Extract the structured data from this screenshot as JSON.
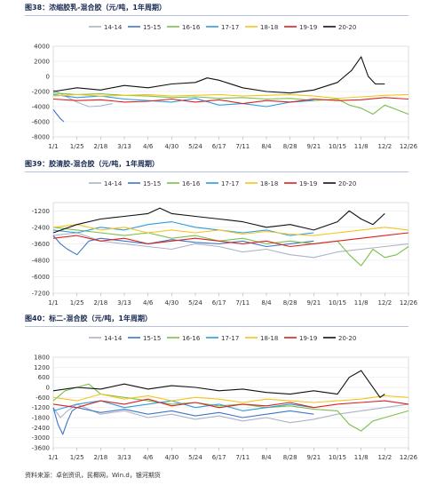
{
  "source": "资料来源：卓创资讯，民椰网，Win.d，银河期货",
  "legend_colors": {
    "14-14": "#aab3c6",
    "15-15": "#3f76c8",
    "16-16": "#7cbf4a",
    "17-17": "#2f9be0",
    "18-18": "#f4c51d",
    "19-19": "#d9231f",
    "20-20": "#111111"
  },
  "chart_data": [
    {
      "type": "line",
      "title": "图38：浓缩胶乳-混合胶（元/吨，1年周期）",
      "x_ticks": [
        "1/1",
        "1/25",
        "2/18",
        "3/13",
        "4/6",
        "4/30",
        "5/24",
        "6/17",
        "7/11",
        "8/4",
        "8/28",
        "9/21",
        "10/15",
        "11/8",
        "12/2",
        "12/26"
      ],
      "y_ticks": [
        "4000",
        "2000",
        "0",
        "-2000",
        "-4000",
        "-6000",
        "-8000"
      ],
      "ylim": [
        -8000,
        4000
      ],
      "series": [
        {
          "name": "14-14",
          "x": [
            0,
            0.5,
            1,
            1.5,
            2,
            2.5
          ],
          "y": [
            -1800,
            -2600,
            -3400,
            -4000,
            -3900,
            -3600
          ]
        },
        {
          "name": "15-15",
          "x": [
            0,
            0.15,
            0.3,
            0.45
          ],
          "y": [
            -4400,
            -5000,
            -5600,
            -6000
          ]
        },
        {
          "name": "16-16",
          "x": [
            0,
            1,
            2,
            3,
            4,
            5,
            6,
            7,
            8,
            9,
            10,
            11,
            12,
            12.5,
            13,
            13.5,
            14,
            14.5,
            15
          ],
          "y": [
            -2200,
            -2400,
            -2300,
            -2500,
            -2600,
            -2800,
            -2700,
            -2900,
            -2800,
            -3000,
            -2900,
            -3200,
            -3000,
            -3800,
            -4200,
            -5000,
            -3800,
            -4400,
            -5000
          ]
        },
        {
          "name": "17-17",
          "x": [
            0,
            1,
            2,
            3,
            4,
            5,
            6,
            7,
            8,
            9,
            10,
            11
          ],
          "y": [
            -2400,
            -2800,
            -2600,
            -3000,
            -3200,
            -3400,
            -2900,
            -3800,
            -3600,
            -4000,
            -3400,
            -3200
          ]
        },
        {
          "name": "18-18",
          "x": [
            0,
            1,
            2,
            3,
            4,
            5,
            6,
            7,
            8,
            9,
            10,
            11,
            12,
            13,
            14,
            15
          ],
          "y": [
            -2600,
            -2400,
            -2600,
            -2500,
            -2400,
            -2600,
            -2500,
            -2400,
            -2600,
            -2500,
            -2400,
            -2600,
            -2900,
            -2700,
            -2500,
            -2400
          ]
        },
        {
          "name": "19-19",
          "x": [
            0,
            1,
            2,
            3,
            4,
            5,
            6,
            7,
            8,
            9,
            10,
            11,
            12,
            13,
            14,
            15
          ],
          "y": [
            -3000,
            -3200,
            -3100,
            -3400,
            -3300,
            -3000,
            -3400,
            -3100,
            -3600,
            -3200,
            -3400,
            -3000,
            -3200,
            -3100,
            -2800,
            -3000
          ]
        },
        {
          "name": "20-20",
          "x": [
            0,
            1,
            2,
            3,
            4,
            5,
            6,
            6.5,
            7,
            8,
            9,
            10,
            11,
            12,
            12.6,
            13,
            13.3,
            13.6,
            14
          ],
          "y": [
            -2000,
            -1500,
            -1800,
            -1200,
            -1500,
            -1000,
            -800,
            -200,
            -500,
            -1500,
            -2000,
            -2200,
            -1800,
            -800,
            800,
            2600,
            0,
            -1000,
            -1000
          ]
        }
      ]
    },
    {
      "type": "line",
      "title": "图39：胶清胶-混合胶（元/吨，1年周期）",
      "x_ticks": [
        "1/1",
        "1/25",
        "2/18",
        "3/13",
        "4/6",
        "4/30",
        "5/24",
        "6/17",
        "7/11",
        "8/4",
        "8/28",
        "9/21",
        "10/15",
        "11/8",
        "12/2",
        "12/26"
      ],
      "y_ticks": [
        "-1200",
        "-2400",
        "-3600",
        "-4800",
        "-6000",
        "-7200"
      ],
      "ylim": [
        -7200,
        -600
      ],
      "series": [
        {
          "name": "14-14",
          "x": [
            0,
            1,
            2,
            3,
            4,
            5,
            6,
            7,
            8,
            9,
            10,
            11,
            12,
            13,
            14,
            15
          ],
          "y": [
            -3000,
            -2800,
            -3400,
            -3600,
            -3800,
            -4000,
            -3600,
            -3800,
            -4200,
            -4000,
            -4400,
            -4600,
            -4200,
            -4000,
            -3800,
            -3600
          ]
        },
        {
          "name": "15-15",
          "x": [
            0,
            0.3,
            0.6,
            1,
            1.5,
            2,
            3,
            4,
            5,
            6,
            7,
            8,
            9,
            10,
            11
          ],
          "y": [
            -3000,
            -3600,
            -4000,
            -4400,
            -3400,
            -3200,
            -3400,
            -3600,
            -3300,
            -3500,
            -3600,
            -3400,
            -3800,
            -3600,
            -3400
          ]
        },
        {
          "name": "16-16",
          "x": [
            0,
            1,
            2,
            3,
            4,
            5,
            6,
            7,
            8,
            9,
            10,
            11,
            12,
            12.5,
            13,
            13.5,
            14,
            14.5,
            15
          ],
          "y": [
            -2400,
            -2600,
            -2800,
            -3000,
            -2800,
            -3200,
            -3000,
            -3400,
            -3200,
            -3600,
            -3400,
            -3600,
            -3400,
            -4400,
            -5200,
            -4000,
            -4600,
            -4400,
            -3800
          ]
        },
        {
          "name": "17-17",
          "x": [
            0,
            1,
            2,
            3,
            4,
            5,
            6,
            7,
            8,
            9,
            10,
            11
          ],
          "y": [
            -2600,
            -2800,
            -2400,
            -2600,
            -2200,
            -2000,
            -2400,
            -2600,
            -2800,
            -2600,
            -3000,
            -2800
          ]
        },
        {
          "name": "18-18",
          "x": [
            0,
            1,
            2,
            3,
            4,
            5,
            6,
            7,
            8,
            9,
            10,
            11,
            12,
            13,
            14,
            15
          ],
          "y": [
            -2400,
            -2200,
            -2600,
            -2400,
            -2800,
            -2600,
            -2800,
            -2600,
            -2900,
            -2700,
            -2900,
            -3000,
            -2800,
            -2600,
            -2400,
            -2600
          ]
        },
        {
          "name": "19-19",
          "x": [
            0,
            1,
            2,
            3,
            4,
            5,
            6,
            7,
            8,
            9,
            10,
            11,
            12,
            13,
            14,
            15
          ],
          "y": [
            -3200,
            -3000,
            -3400,
            -3200,
            -3600,
            -3400,
            -3200,
            -3400,
            -3600,
            -3400,
            -3800,
            -3600,
            -3400,
            -3200,
            -3000,
            -2800
          ]
        },
        {
          "name": "20-20",
          "x": [
            0,
            1,
            2,
            3,
            4,
            4.5,
            5,
            6,
            7,
            8,
            9,
            10,
            11,
            12,
            12.5,
            13,
            13.5,
            14
          ],
          "y": [
            -2800,
            -2200,
            -1800,
            -1600,
            -1400,
            -1000,
            -1400,
            -1600,
            -1800,
            -2000,
            -2400,
            -2200,
            -2600,
            -2000,
            -1200,
            -1800,
            -2200,
            -1400
          ]
        }
      ]
    },
    {
      "type": "line",
      "title": "图40：标二-混合胶（元/吨，1年周期）",
      "x_ticks": [
        "1/1",
        "1/25",
        "2/18",
        "3/13",
        "4/6",
        "4/30",
        "5/24",
        "6/17",
        "7/11",
        "8/4",
        "8/28",
        "9/21",
        "10/15",
        "11/8",
        "12/2",
        "12/26"
      ],
      "y_ticks": [
        "1800",
        "1200",
        "600",
        "0",
        "-600",
        "-1200",
        "-1800",
        "-2400",
        "-3000",
        "-3600"
      ],
      "ylim": [
        -3600,
        1800
      ],
      "series": [
        {
          "name": "14-14",
          "x": [
            0,
            0.3,
            0.6,
            1,
            2,
            3,
            4,
            5,
            6,
            7,
            8,
            9,
            10,
            11,
            12,
            13,
            14,
            15
          ],
          "y": [
            -1200,
            -1800,
            -1400,
            -1000,
            -1600,
            -1400,
            -1800,
            -1600,
            -1900,
            -1700,
            -2000,
            -1800,
            -2100,
            -1900,
            -1600,
            -1400,
            -1200,
            -1000
          ]
        },
        {
          "name": "15-15",
          "x": [
            0,
            0.2,
            0.4,
            0.6,
            0.8,
            1,
            2,
            3,
            4,
            5,
            6,
            7,
            8,
            9,
            10,
            11
          ],
          "y": [
            -1200,
            -2200,
            -2800,
            -2000,
            -1400,
            -1200,
            -1500,
            -1300,
            -1600,
            -1400,
            -1700,
            -1500,
            -1800,
            -1600,
            -1400,
            -1600
          ]
        },
        {
          "name": "16-16",
          "x": [
            0,
            0.5,
            1,
            1.5,
            2,
            3,
            4,
            5,
            6,
            7,
            8,
            9,
            10,
            11,
            12,
            12.5,
            13,
            13.5,
            14,
            15
          ],
          "y": [
            -800,
            -200,
            0,
            200,
            -400,
            -600,
            -800,
            -1000,
            -900,
            -1100,
            -1000,
            -1200,
            -1100,
            -1300,
            -1400,
            -2200,
            -2600,
            -2000,
            -1800,
            -1400
          ]
        },
        {
          "name": "17-17",
          "x": [
            0,
            1,
            2,
            3,
            4,
            5,
            6,
            7,
            8,
            9,
            10,
            11
          ],
          "y": [
            -1400,
            -1000,
            -800,
            -1200,
            -1000,
            -800,
            -1200,
            -1000,
            -1400,
            -1200,
            -1000,
            -1200
          ]
        },
        {
          "name": "18-18",
          "x": [
            0,
            1,
            2,
            3,
            4,
            5,
            6,
            7,
            8,
            9,
            10,
            11,
            12,
            13,
            14,
            15
          ],
          "y": [
            -600,
            -800,
            -400,
            -700,
            -500,
            -800,
            -600,
            -700,
            -900,
            -700,
            -800,
            -900,
            -800,
            -700,
            -500,
            -600
          ]
        },
        {
          "name": "19-19",
          "x": [
            0,
            1,
            2,
            3,
            4,
            5,
            6,
            7,
            8,
            9,
            10,
            11,
            12,
            13,
            14,
            15
          ],
          "y": [
            -1000,
            -1200,
            -800,
            -1000,
            -700,
            -1100,
            -900,
            -1200,
            -1000,
            -1100,
            -900,
            -1200,
            -1000,
            -900,
            -800,
            -1000
          ]
        },
        {
          "name": "20-20",
          "x": [
            0,
            1,
            2,
            3,
            4,
            5,
            6,
            7,
            8,
            9,
            10,
            11,
            12,
            12.5,
            13,
            13.4,
            13.8,
            14
          ],
          "y": [
            -200,
            0,
            -100,
            200,
            -100,
            100,
            0,
            -200,
            -100,
            -300,
            -400,
            -200,
            -400,
            600,
            1000,
            200,
            -600,
            -400
          ]
        }
      ]
    }
  ]
}
